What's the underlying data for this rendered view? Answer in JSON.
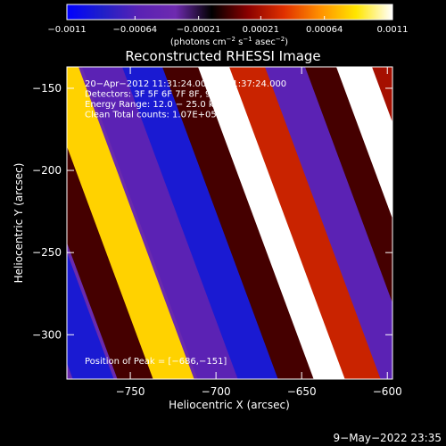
{
  "chart_data": {
    "type": "heatmap",
    "title": "Reconstructed RHESSI Image",
    "xlabel": "Heliocentric X (arcsec)",
    "ylabel": "Heliocentric Y (arcsec)",
    "xlim": [
      -787,
      -597
    ],
    "ylim": [
      -327,
      -137
    ],
    "xticks": [
      -750,
      -700,
      -650,
      -600
    ],
    "xtick_labels": [
      "−750",
      "−700",
      "−650",
      "−600"
    ],
    "yticks": [
      -150,
      -200,
      -250,
      -300
    ],
    "ytick_labels": [
      "−150",
      "−200",
      "−250",
      "−300"
    ],
    "colorbar": {
      "range": [
        -0.0011,
        0.0011
      ],
      "ticks": [
        -0.0011,
        -0.00064,
        -0.00021,
        0.00021,
        0.00064,
        0.0011
      ],
      "tick_labels": [
        "−0.0011",
        "−0.00064",
        "−0.00021",
        "0.00021",
        "0.00064",
        "0.0011"
      ],
      "unit_base": "(photons cm",
      "unit_exp1": "−2",
      "unit_mid": " s",
      "unit_exp2": "−1",
      "unit_mid2": " asec",
      "unit_exp3": "−2",
      "unit_close": ")",
      "colors": [
        "#0000ff",
        "#2020c8",
        "#5a22b4",
        "#6e2ab0",
        "#000000",
        "#8a0000",
        "#e03000",
        "#ff9000",
        "#ffe600",
        "#ffffff"
      ]
    },
    "annotations": [
      "20−Apr−2012 11:31:24.000 to 11:37:24.000",
      "Detectors: 3F 5F 6F 7F 8F, 9F",
      "Energy Range: 12.0 − 25.0 keV",
      "Clean     Total counts: 1.07E+05"
    ],
    "peak_label": "Position of Peak = [−686,−151]",
    "peak": [
      -686,
      -151
    ],
    "stripes": [
      {
        "intercept": -155,
        "value": -0.0003
      },
      {
        "intercept": -100,
        "value": -0.0009
      },
      {
        "intercept": -50,
        "value": 0.0
      },
      {
        "intercept": -10,
        "value": 0.0008
      },
      {
        "intercept": 40,
        "value": -0.0006
      },
      {
        "intercept": 85,
        "value": -0.0009
      },
      {
        "intercept": 130,
        "value": 0.0
      },
      {
        "intercept": 170,
        "value": 0.0011
      },
      {
        "intercept": 205,
        "value": 0.0003
      },
      {
        "intercept": 245,
        "value": -0.0006
      },
      {
        "intercept": 290,
        "value": 0.0
      },
      {
        "intercept": 325,
        "value": 0.0011
      },
      {
        "intercept": 365,
        "value": 0.0002
      }
    ],
    "stripe_slope": 2.7
  },
  "footer": {
    "date": "9−May−2022 23:35"
  }
}
